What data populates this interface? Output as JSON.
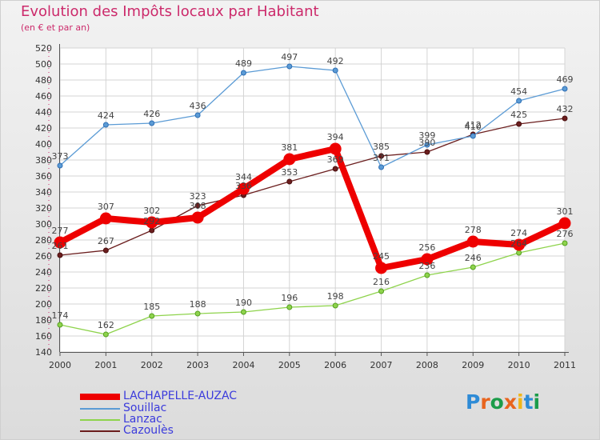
{
  "title": "Evolution des Impôts locaux par Habitant",
  "subtitle": "(en € et par an)",
  "chart_data": {
    "type": "line",
    "title": "Evolution des Impôts locaux par Habitant",
    "subtitle": "(en € et par an)",
    "xlabel": "",
    "ylabel": "",
    "x": [
      "2000",
      "2001",
      "2002",
      "2003",
      "2004",
      "2005",
      "2006",
      "2007",
      "2008",
      "2009",
      "2010",
      "2011"
    ],
    "ylim": [
      140,
      520
    ],
    "yticks": [
      140,
      160,
      180,
      200,
      220,
      240,
      260,
      280,
      300,
      320,
      340,
      360,
      380,
      400,
      420,
      440,
      460,
      480,
      500,
      520
    ],
    "grid": true,
    "legend": "bottom-left",
    "series": [
      {
        "name": "LACHAPELLE-AUZAC",
        "color": "#ee0000",
        "values": [
          277,
          307,
          302,
          308,
          344,
          381,
          394,
          245,
          256,
          278,
          274,
          301
        ]
      },
      {
        "name": "Souillac",
        "color": "#5b9bd5",
        "values": [
          373,
          424,
          426,
          436,
          489,
          497,
          492,
          371,
          399,
          410,
          454,
          469
        ]
      },
      {
        "name": "Lanzac",
        "color": "#8ed34c",
        "values": [
          174,
          162,
          185,
          188,
          190,
          196,
          198,
          216,
          236,
          246,
          264,
          276
        ]
      },
      {
        "name": "Cazoulès",
        "color": "#6b1e1e",
        "values": [
          261,
          267,
          292,
          323,
          336,
          353,
          369,
          385,
          390,
          412,
          425,
          432
        ]
      }
    ]
  },
  "logo": {
    "text": "Proxiti",
    "letters": [
      "P",
      "r",
      "o",
      "x",
      "i",
      "t",
      "i"
    ]
  }
}
